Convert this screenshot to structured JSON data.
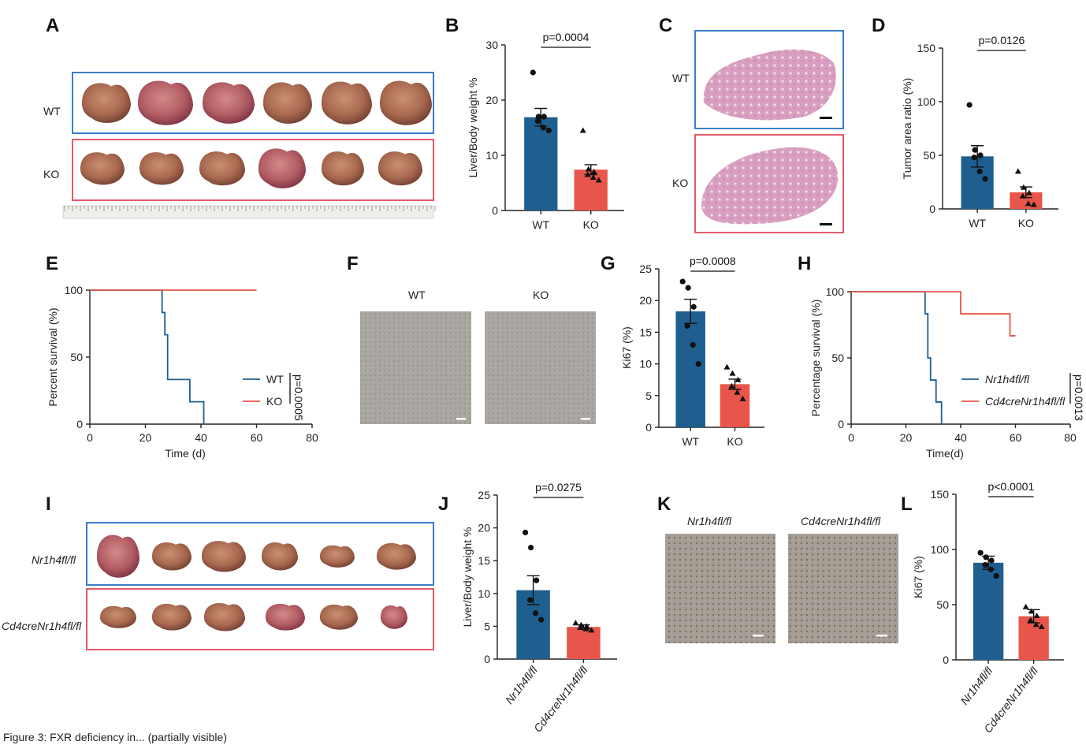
{
  "caption": "Figure 3: FXR deficiency in... (partially visible)",
  "colors": {
    "wt": "#1f5f8f",
    "ko": "#e8554a",
    "box_wt": "#3a7dc9",
    "box_ko": "#e05a6a"
  },
  "panels": {
    "A": {
      "label": "A",
      "row_labels": [
        "WT",
        "KO"
      ],
      "icon": "liver-photo-placeholder"
    },
    "B": {
      "label": "B"
    },
    "C": {
      "label": "C",
      "row_labels": [
        "WT",
        "KO"
      ]
    },
    "D": {
      "label": "D"
    },
    "E": {
      "label": "E"
    },
    "F": {
      "label": "F",
      "col_labels": [
        "WT",
        "KO"
      ]
    },
    "G": {
      "label": "G"
    },
    "H": {
      "label": "H"
    },
    "I": {
      "label": "I",
      "row_labels": [
        "Nr1h4fl/fl",
        "Cd4creNr1h4fl/fl"
      ]
    },
    "J": {
      "label": "J"
    },
    "K": {
      "label": "K",
      "col_labels": [
        "Nr1h4fl/fl",
        "Cd4creNr1h4fl/fl"
      ]
    },
    "L": {
      "label": "L"
    }
  },
  "chart_data": [
    {
      "id": "B",
      "type": "bar",
      "categories": [
        "WT",
        "KO"
      ],
      "values": [
        16.9,
        7.4
      ],
      "errors": [
        1.6,
        0.9
      ],
      "points": [
        [
          25,
          17,
          17,
          16.2,
          15,
          14.5
        ],
        [
          14.5,
          7.5,
          7,
          6.5,
          6,
          5.5
        ]
      ],
      "ylabel": "Liver/Body weight %",
      "ylim": [
        0,
        30
      ],
      "yticks": [
        0,
        10,
        20,
        30
      ],
      "annotation": "p=0.0004"
    },
    {
      "id": "D",
      "type": "bar",
      "categories": [
        "WT",
        "KO"
      ],
      "values": [
        49,
        15.5
      ],
      "errors": [
        10,
        5
      ],
      "points": [
        [
          97,
          55,
          50,
          48,
          35,
          28
        ],
        [
          35,
          20,
          15,
          12,
          5,
          4
        ]
      ],
      "ylabel": "Tumor area ratio (%)",
      "ylim": [
        0,
        150
      ],
      "yticks": [
        0,
        50,
        100,
        150
      ],
      "annotation": "p=0.0126"
    },
    {
      "id": "E",
      "type": "line",
      "subtype": "survival",
      "xlabel": "Time (d)",
      "ylabel": "Percent survival (%)",
      "xlim": [
        0,
        80
      ],
      "xticks": [
        0,
        20,
        40,
        60,
        80
      ],
      "ylim": [
        0,
        100
      ],
      "yticks": [
        0,
        50,
        100
      ],
      "series": [
        {
          "name": "WT",
          "x": [
            0,
            26,
            26,
            27,
            27,
            28,
            28,
            36,
            36,
            41,
            41
          ],
          "y": [
            100,
            100,
            83.3,
            83.3,
            66.7,
            66.7,
            33.3,
            33.3,
            16.7,
            16.7,
            0
          ]
        },
        {
          "name": "KO",
          "x": [
            0,
            60
          ],
          "y": [
            100,
            100
          ]
        }
      ],
      "annotation": "p=0.0005"
    },
    {
      "id": "G",
      "type": "bar",
      "categories": [
        "WT",
        "KO"
      ],
      "values": [
        18.3,
        6.8
      ],
      "errors": [
        1.9,
        0.8
      ],
      "points": [
        [
          23,
          22,
          19,
          16,
          13,
          10
        ],
        [
          9.5,
          8.5,
          7.5,
          6.5,
          5.5,
          4.5
        ]
      ],
      "ylabel": "Ki67 (%)",
      "ylim": [
        0,
        25
      ],
      "yticks": [
        0,
        5,
        10,
        15,
        20,
        25
      ],
      "annotation": "p=0.0008"
    },
    {
      "id": "H",
      "type": "line",
      "subtype": "survival",
      "xlabel": "Time(d)",
      "ylabel": "Percentage survival (%)",
      "xlim": [
        0,
        80
      ],
      "xticks": [
        0,
        20,
        40,
        60,
        80
      ],
      "ylim": [
        0,
        100
      ],
      "yticks": [
        0,
        50,
        100
      ],
      "series": [
        {
          "name": "Nr1h4fl/fl",
          "x": [
            0,
            27,
            27,
            28,
            28,
            29,
            29,
            31,
            31,
            33,
            33
          ],
          "y": [
            100,
            100,
            83.3,
            83.3,
            50,
            50,
            33.3,
            33.3,
            16.7,
            16.7,
            0
          ]
        },
        {
          "name": "Cd4creNr1h4fl/fl",
          "x": [
            0,
            40,
            40,
            58,
            58,
            60
          ],
          "y": [
            100,
            100,
            83.3,
            83.3,
            66.7,
            66.7
          ]
        }
      ],
      "annotation": "p=0.0013"
    },
    {
      "id": "J",
      "type": "bar",
      "categories": [
        "Nr1h4fl/fl",
        "Cd4creNr1h4fl/fl"
      ],
      "values": [
        10.5,
        4.9
      ],
      "errors": [
        2.2,
        0.3
      ],
      "points": [
        [
          19.3,
          17,
          12,
          9,
          7,
          6
        ],
        [
          5.5,
          5.2,
          5,
          4.8,
          4.6,
          4.4
        ]
      ],
      "ylabel": "Liver/Body weight %",
      "ylim": [
        0,
        25
      ],
      "yticks": [
        0,
        5,
        10,
        15,
        20,
        25
      ],
      "annotation": "p=0.0275"
    },
    {
      "id": "L",
      "type": "bar",
      "categories": [
        "Nr1h4fl/fl",
        "Cd4creNr1h4fl/fl"
      ],
      "values": [
        88,
        39.5
      ],
      "errors": [
        6,
        6
      ],
      "points": [
        [
          97,
          93,
          90,
          86,
          82,
          76
        ],
        [
          48,
          44,
          40,
          36,
          32,
          30
        ]
      ],
      "ylabel": "Ki67 (%)",
      "ylim": [
        0,
        150
      ],
      "yticks": [
        0,
        50,
        100,
        150
      ],
      "annotation": "p<0.0001"
    }
  ]
}
